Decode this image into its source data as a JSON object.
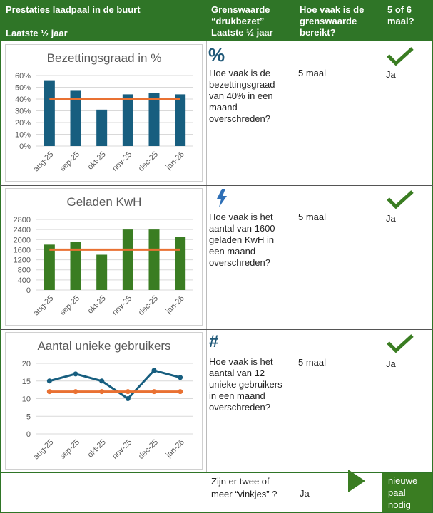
{
  "header": {
    "col1_title": "Prestaties laadpaal in de buurt",
    "col1_sub": "Laatste ½ jaar",
    "col2_lines": [
      "Grenswaarde",
      "“drukbezet”",
      "Laatste ½ jaar"
    ],
    "col3_lines": [
      "Hoe vaak is de",
      "grenswaarde",
      "bereikt?"
    ],
    "col4_lines": [
      "5 of 6",
      "maal?"
    ]
  },
  "colors": {
    "green": "#2f7527",
    "bar_blue": "#175e7f",
    "bar_green": "#3a7d22",
    "threshold": "#e97132",
    "icon_blue": "#1f5878"
  },
  "rows": [
    {
      "icon": "percent-icon",
      "icon_text": "%",
      "question_lines": [
        "Hoe vaak is de",
        "bezettingsgraad",
        "van 40% in een",
        "maand",
        "overschreden?"
      ],
      "count": "5 maal",
      "answer": "Ja",
      "check": "checkmark-icon"
    },
    {
      "icon": "lightning-icon",
      "icon_text": "",
      "question_lines": [
        "Hoe vaak is het",
        "aantal van 1600",
        "geladen KwH  in",
        "een maand",
        "overschreden?"
      ],
      "count": "5 maal",
      "answer": "Ja",
      "check": "checkmark-icon"
    },
    {
      "icon": "hash-icon",
      "icon_text": "#",
      "question_lines": [
        "Hoe vaak is het",
        "aantal van 12",
        "unieke gebruikers",
        "in een maand",
        "overschreden?"
      ],
      "count": "5 maal",
      "answer": "Ja",
      "check": "checkmark-icon"
    }
  ],
  "footer": {
    "question_lines": [
      "Zijn er twee of",
      "meer  “vinkjes” ?"
    ],
    "answer": "Ja",
    "result_lines": [
      "nieuwe",
      "paal",
      "nodig"
    ]
  },
  "chart_data": [
    {
      "type": "bar",
      "title": "Bezettingsgraad in %",
      "categories": [
        "aug-25",
        "sep-25",
        "okt-25",
        "nov-25",
        "dec-25",
        "jan-26"
      ],
      "values": [
        56,
        47,
        31,
        44,
        45,
        44
      ],
      "threshold": [
        40,
        40,
        40,
        40,
        40,
        40
      ],
      "ylim": [
        0,
        60
      ],
      "yticks": [
        "0%",
        "10%",
        "20%",
        "30%",
        "40%",
        "50%",
        "60%"
      ],
      "grid": true
    },
    {
      "type": "bar",
      "title": "Geladen KwH",
      "categories": [
        "aug-25",
        "sep-25",
        "okt-25",
        "nov-25",
        "dec-25",
        "jan-26"
      ],
      "values": [
        1800,
        1900,
        1400,
        2400,
        2400,
        2100
      ],
      "threshold": [
        1600,
        1600,
        1600,
        1600,
        1600,
        1600
      ],
      "ylim": [
        0,
        2800
      ],
      "yticks": [
        "0",
        "400",
        "800",
        "1200",
        "1600",
        "2000",
        "2400",
        "2800"
      ],
      "grid": true
    },
    {
      "type": "line",
      "title": "Aantal unieke gebruikers",
      "categories": [
        "aug-25",
        "sep-25",
        "okt-25",
        "nov-25",
        "dec-25",
        "jan-26"
      ],
      "values": [
        15,
        17,
        15,
        10,
        18,
        16
      ],
      "threshold": [
        12,
        12,
        12,
        12,
        12,
        12
      ],
      "ylim": [
        0,
        20
      ],
      "yticks": [
        "0",
        "5",
        "10",
        "15",
        "20"
      ],
      "grid": true
    }
  ]
}
